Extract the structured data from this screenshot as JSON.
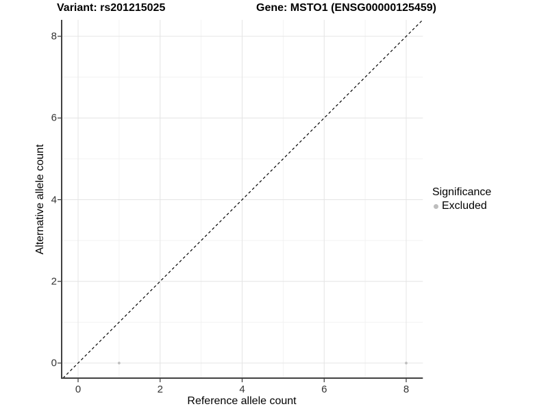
{
  "colors": {
    "background": "#ffffff",
    "axis_line": "#404040",
    "grid_major": "#e4e4e4",
    "grid_minor": "#f2f2f2",
    "tick_mark": "#333333",
    "tick_text": "#333333",
    "point": "#bdbdbd",
    "identity_line": "#000000"
  },
  "chart_data": {
    "type": "scatter",
    "title_left": "Variant: rs201215025",
    "title_right": "Gene: MSTO1 (ENSG00000125459)",
    "xlabel": "Reference allele count",
    "ylabel": "Alternative allele count",
    "xlim": [
      -0.4,
      8.4
    ],
    "ylim": [
      -0.4,
      8.4
    ],
    "xticks": [
      0,
      2,
      4,
      6,
      8
    ],
    "yticks": [
      0,
      2,
      4,
      6,
      8
    ],
    "minor_xticks": [
      1,
      3,
      5,
      7
    ],
    "minor_yticks": [
      1,
      3,
      5,
      7
    ],
    "grid": true,
    "identity_line": {
      "style": "dashed",
      "color": "#000000",
      "slope": 1,
      "intercept": 0
    },
    "series": [
      {
        "name": "Excluded",
        "color": "#bdbdbd",
        "marker": "circle",
        "points": [
          [
            1,
            0
          ],
          [
            8,
            0
          ]
        ]
      }
    ],
    "legend": {
      "title": "Significance",
      "position": "right",
      "entries": [
        {
          "label": "Excluded",
          "color": "#bdbdbd"
        }
      ]
    }
  }
}
